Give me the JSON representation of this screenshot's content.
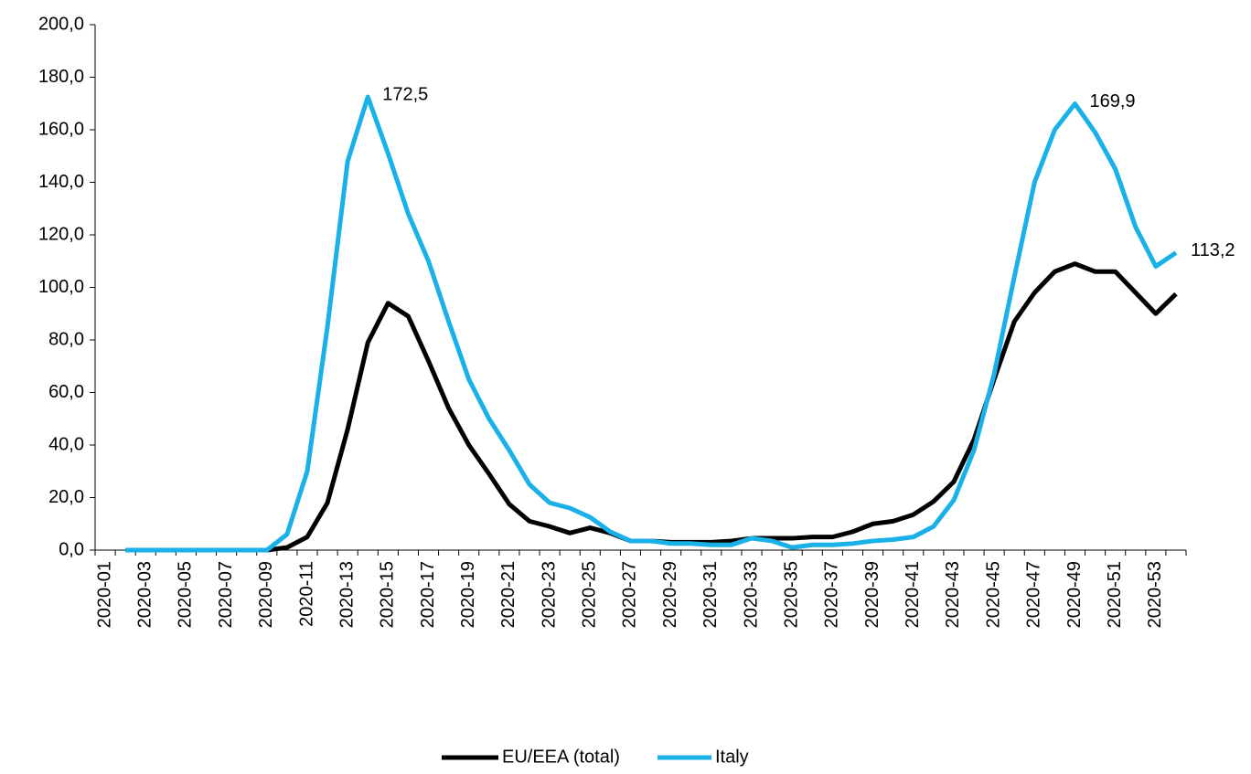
{
  "chart_data": {
    "type": "line",
    "categories": [
      null,
      null,
      "2020-03",
      null,
      "2020-05",
      null,
      "2020-07",
      null,
      "2020-09",
      null,
      "2020-11",
      null,
      "2020-13",
      null,
      "2020-15",
      null,
      "2020-17",
      null,
      "2020-19",
      null,
      "2020-21",
      null,
      "2020-23",
      null,
      "2020-25",
      null,
      "2020-27",
      null,
      "2020-29",
      null,
      "2020-31",
      null,
      "2020-33",
      null,
      "2020-35",
      null,
      "2020-37",
      null,
      "2020-39",
      null,
      "2020-41",
      null,
      "2020-43",
      null,
      "2020-45",
      null,
      "2020-47",
      null,
      "2020-49",
      null,
      "2020-51",
      null,
      "2020-53",
      null
    ],
    "first_category": "2020-01",
    "series": [
      {
        "name": "EU/EEA (total)",
        "color": "#000000",
        "values": [
          null,
          0,
          0,
          0,
          0,
          0,
          0,
          0,
          0,
          1,
          5,
          18,
          46,
          79,
          94,
          89,
          72,
          54,
          40,
          29,
          17.5,
          11,
          9,
          6.5,
          8.5,
          6.5,
          3.5,
          3.5,
          3,
          3,
          3,
          3.5,
          4.5,
          4.5,
          4.5,
          5,
          5,
          7,
          10,
          11,
          13.5,
          18.5,
          26,
          42,
          65,
          87,
          98,
          106,
          109,
          106,
          106,
          98,
          90,
          97.5
        ]
      },
      {
        "name": "Italy",
        "color": "#1ab0e8",
        "values": [
          null,
          0,
          0,
          0,
          0,
          0,
          0,
          0,
          0,
          6,
          30,
          85,
          148,
          172.5,
          151,
          128,
          110,
          87,
          65,
          50,
          38,
          25,
          18,
          16,
          12.5,
          7,
          3.5,
          3.5,
          2.5,
          2.5,
          2,
          2,
          4.5,
          3.5,
          1,
          2,
          2,
          2.5,
          3.5,
          4,
          5,
          9,
          19,
          38,
          67,
          104,
          140,
          160,
          169.9,
          159,
          145,
          123,
          108,
          113.2
        ],
        "value_labels": [
          null,
          null,
          null,
          null,
          null,
          null,
          null,
          null,
          null,
          null,
          null,
          null,
          null,
          "172,5",
          null,
          null,
          null,
          null,
          null,
          null,
          null,
          null,
          null,
          null,
          null,
          null,
          null,
          null,
          null,
          null,
          null,
          null,
          null,
          null,
          null,
          null,
          null,
          null,
          null,
          null,
          null,
          null,
          null,
          null,
          null,
          null,
          null,
          null,
          "169,9",
          null,
          null,
          null,
          null,
          "113,2"
        ]
      }
    ],
    "ylim": [
      0,
      200
    ],
    "yticks": [
      {
        "value": 0,
        "label": "0,0"
      },
      {
        "value": 20,
        "label": "20,0"
      },
      {
        "value": 40,
        "label": "40,0"
      },
      {
        "value": 60,
        "label": "60,0"
      },
      {
        "value": 80,
        "label": "80,0"
      },
      {
        "value": 100,
        "label": "100,0"
      },
      {
        "value": 120,
        "label": "120,0"
      },
      {
        "value": 140,
        "label": "140,0"
      },
      {
        "value": 160,
        "label": "160,0"
      },
      {
        "value": 180,
        "label": "180,0"
      },
      {
        "value": 200,
        "label": "200,0"
      }
    ],
    "legend": "bottom"
  }
}
